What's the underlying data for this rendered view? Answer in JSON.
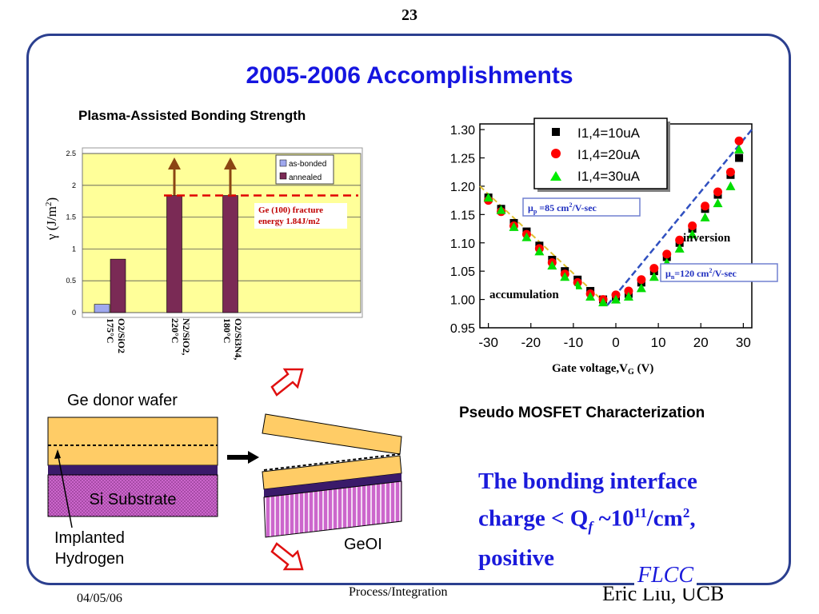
{
  "page_number": "23",
  "slide_title": "2005-2006 Accomplishments",
  "left_chart": {
    "title": "Plasma-Assisted  Bonding Strength",
    "ylabel": "γ (J/m",
    "ylabel_sup": "2",
    "ylabel_end": ")",
    "yticks": [
      "0",
      "0.5",
      "1",
      "1.5",
      "2",
      "2.5"
    ],
    "legend": [
      "as-bonded",
      "annealed"
    ],
    "annotation_line1": "Ge (100) fracture",
    "annotation_line2": "energy 1.84J/m2",
    "category_lines": [
      [
        "O2/SiO2",
        "175°C"
      ],
      [
        "N2/SiO2,",
        "220°C"
      ],
      [
        "O2/Si3N4,",
        "180°C"
      ]
    ],
    "colors": {
      "as_bonded": "#9fa8ee",
      "annealed": "#7a2a55",
      "plot_bg": "#ffff99",
      "threshold": "#e00000",
      "arrow": "#8b4513"
    }
  },
  "right_chart": {
    "xticks": [
      "-30",
      "-20",
      "-10",
      "0",
      "10",
      "20",
      "30"
    ],
    "yticks": [
      "0.95",
      "1.00",
      "1.05",
      "1.10",
      "1.15",
      "1.20",
      "1.25",
      "1.30"
    ],
    "xlabel": "Gate voltage,V",
    "xlabel_sub": "G",
    "xlabel_end": " (V)",
    "legend": [
      "I1,4=10uA",
      "I1,4=20uA",
      "I1,4=30uA"
    ],
    "mu_p_label": "μ",
    "mu_p_sub": "p",
    "mu_p_rest": " =85 cm",
    "mu_p_sup": "2",
    "mu_p_end": "/V-sec",
    "mu_n_label": "μ",
    "mu_n_sub": "n",
    "mu_n_rest": "=120 cm",
    "mu_n_sup": "2",
    "mu_n_end": "/V-sec",
    "inversion": "inversion",
    "accumulation": "accumulation"
  },
  "chart_data": [
    {
      "type": "bar",
      "title": "Plasma-Assisted  Bonding Strength",
      "ylabel": "γ (J/m2)",
      "ylim": [
        0,
        2.5
      ],
      "categories": [
        "O2/SiO2 175°C",
        "N2/SiO2, 220°C",
        "O2/Si3N4, 180°C"
      ],
      "series": [
        {
          "name": "as-bonded",
          "values": [
            0.13,
            null,
            null
          ]
        },
        {
          "name": "annealed",
          "values": [
            0.84,
            1.84,
            1.84
          ]
        }
      ],
      "annotations": [
        "Ge (100) fracture energy 1.84J/m2"
      ],
      "threshold": 1.84,
      "legend": "top-right",
      "grid": true
    },
    {
      "type": "scatter",
      "xlabel": "Gate voltage,VG (V)",
      "xlim": [
        -32,
        32
      ],
      "ylim": [
        0.95,
        1.31
      ],
      "series": [
        {
          "name": "I1,4=10uA",
          "x": [
            -30,
            -27,
            -24,
            -21,
            -18,
            -15,
            -12,
            -9,
            -6,
            -3,
            0,
            3,
            6,
            9,
            12,
            15,
            18,
            21,
            24,
            27,
            29
          ],
          "y": [
            1.18,
            1.16,
            1.135,
            1.12,
            1.095,
            1.07,
            1.05,
            1.035,
            1.015,
            1.0,
            1.005,
            1.01,
            1.03,
            1.05,
            1.075,
            1.1,
            1.125,
            1.16,
            1.185,
            1.22,
            1.25
          ]
        },
        {
          "name": "I1,4=20uA",
          "x": [
            -30,
            -27,
            -24,
            -21,
            -18,
            -15,
            -12,
            -9,
            -6,
            -3,
            0,
            3,
            6,
            9,
            12,
            15,
            18,
            21,
            24,
            27,
            29
          ],
          "y": [
            1.175,
            1.155,
            1.13,
            1.115,
            1.09,
            1.065,
            1.045,
            1.03,
            1.01,
            1.0,
            1.008,
            1.015,
            1.035,
            1.055,
            1.08,
            1.105,
            1.13,
            1.165,
            1.19,
            1.225,
            1.28
          ]
        },
        {
          "name": "I1,4=30uA",
          "x": [
            -30,
            -27,
            -24,
            -21,
            -18,
            -15,
            -12,
            -9,
            -6,
            -3,
            0,
            3,
            6,
            9,
            12,
            15,
            18,
            21,
            24,
            27,
            29
          ],
          "y": [
            1.18,
            1.158,
            1.128,
            1.11,
            1.085,
            1.06,
            1.04,
            1.025,
            1.005,
            0.995,
            1.0,
            1.005,
            1.02,
            1.04,
            1.065,
            1.09,
            1.115,
            1.145,
            1.17,
            1.2,
            1.265
          ]
        }
      ],
      "annotations": [
        "μp =85 cm2/V-sec",
        "μn=120 cm2/V-sec",
        "inversion",
        "accumulation"
      ],
      "legend": "top-right"
    }
  ],
  "schematic": {
    "donor_label": "Ge donor wafer",
    "substrate_label": "Si Substrate",
    "implant_line1": "Implanted",
    "implant_line2": "Hydrogen",
    "geoi_label": "GeOI",
    "colors": {
      "ge": "#ffcc66",
      "si": "#cc66cc",
      "oxide": "#3a1a6a"
    }
  },
  "caption": "Pseudo MOSFET Characterization",
  "charge_line1": "The bonding interface",
  "charge_line2_a": "charge < Q",
  "charge_line2_sub": "f",
  "charge_line2_b": " ~10",
  "charge_line2_sup": "11",
  "charge_line2_c": "/cm",
  "charge_line2_sup2": "2",
  "charge_line2_d": ",",
  "charge_line3": "positive",
  "footer": {
    "date": "04/05/06",
    "center": "Process/Integration",
    "author": "Eric Liu, UCB",
    "logo": "FLCC"
  }
}
